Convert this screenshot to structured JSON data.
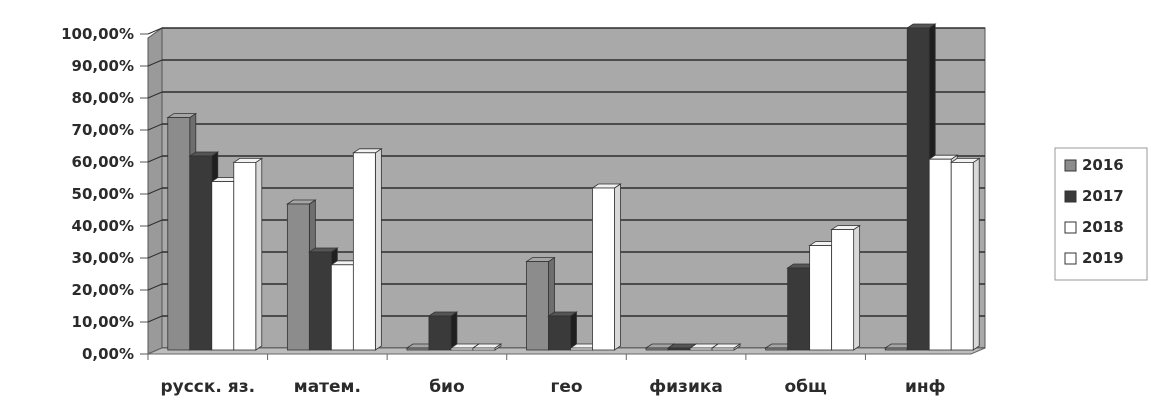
{
  "chart_data": {
    "type": "bar",
    "style": "3d-clustered-column",
    "categories": [
      "русск. яз.",
      "матем.",
      "био",
      "гео",
      "физика",
      "общ",
      "инф"
    ],
    "series": [
      {
        "name": "2016",
        "values": [
          72,
          45,
          0,
          27,
          0,
          0,
          0
        ],
        "color": "#8c8c8c"
      },
      {
        "name": "2017",
        "values": [
          60,
          30,
          10,
          10,
          0,
          25,
          100
        ],
        "color": "#3a3a3a"
      },
      {
        "name": "2018",
        "values": [
          52,
          26,
          0,
          0,
          0,
          32,
          59
        ],
        "color": "#ffffff"
      },
      {
        "name": "2019",
        "values": [
          58,
          61,
          0,
          50,
          0,
          37,
          58
        ],
        "color": "#ffffff"
      }
    ],
    "y_ticks": [
      "0,00%",
      "10,00%",
      "20,00%",
      "30,00%",
      "40,00%",
      "50,00%",
      "60,00%",
      "70,00%",
      "80,00%",
      "90,00%",
      "100,00%"
    ],
    "ylim": [
      0,
      100
    ],
    "grid": true,
    "legend_position": "right",
    "plot_background": "#a9a9a9"
  }
}
